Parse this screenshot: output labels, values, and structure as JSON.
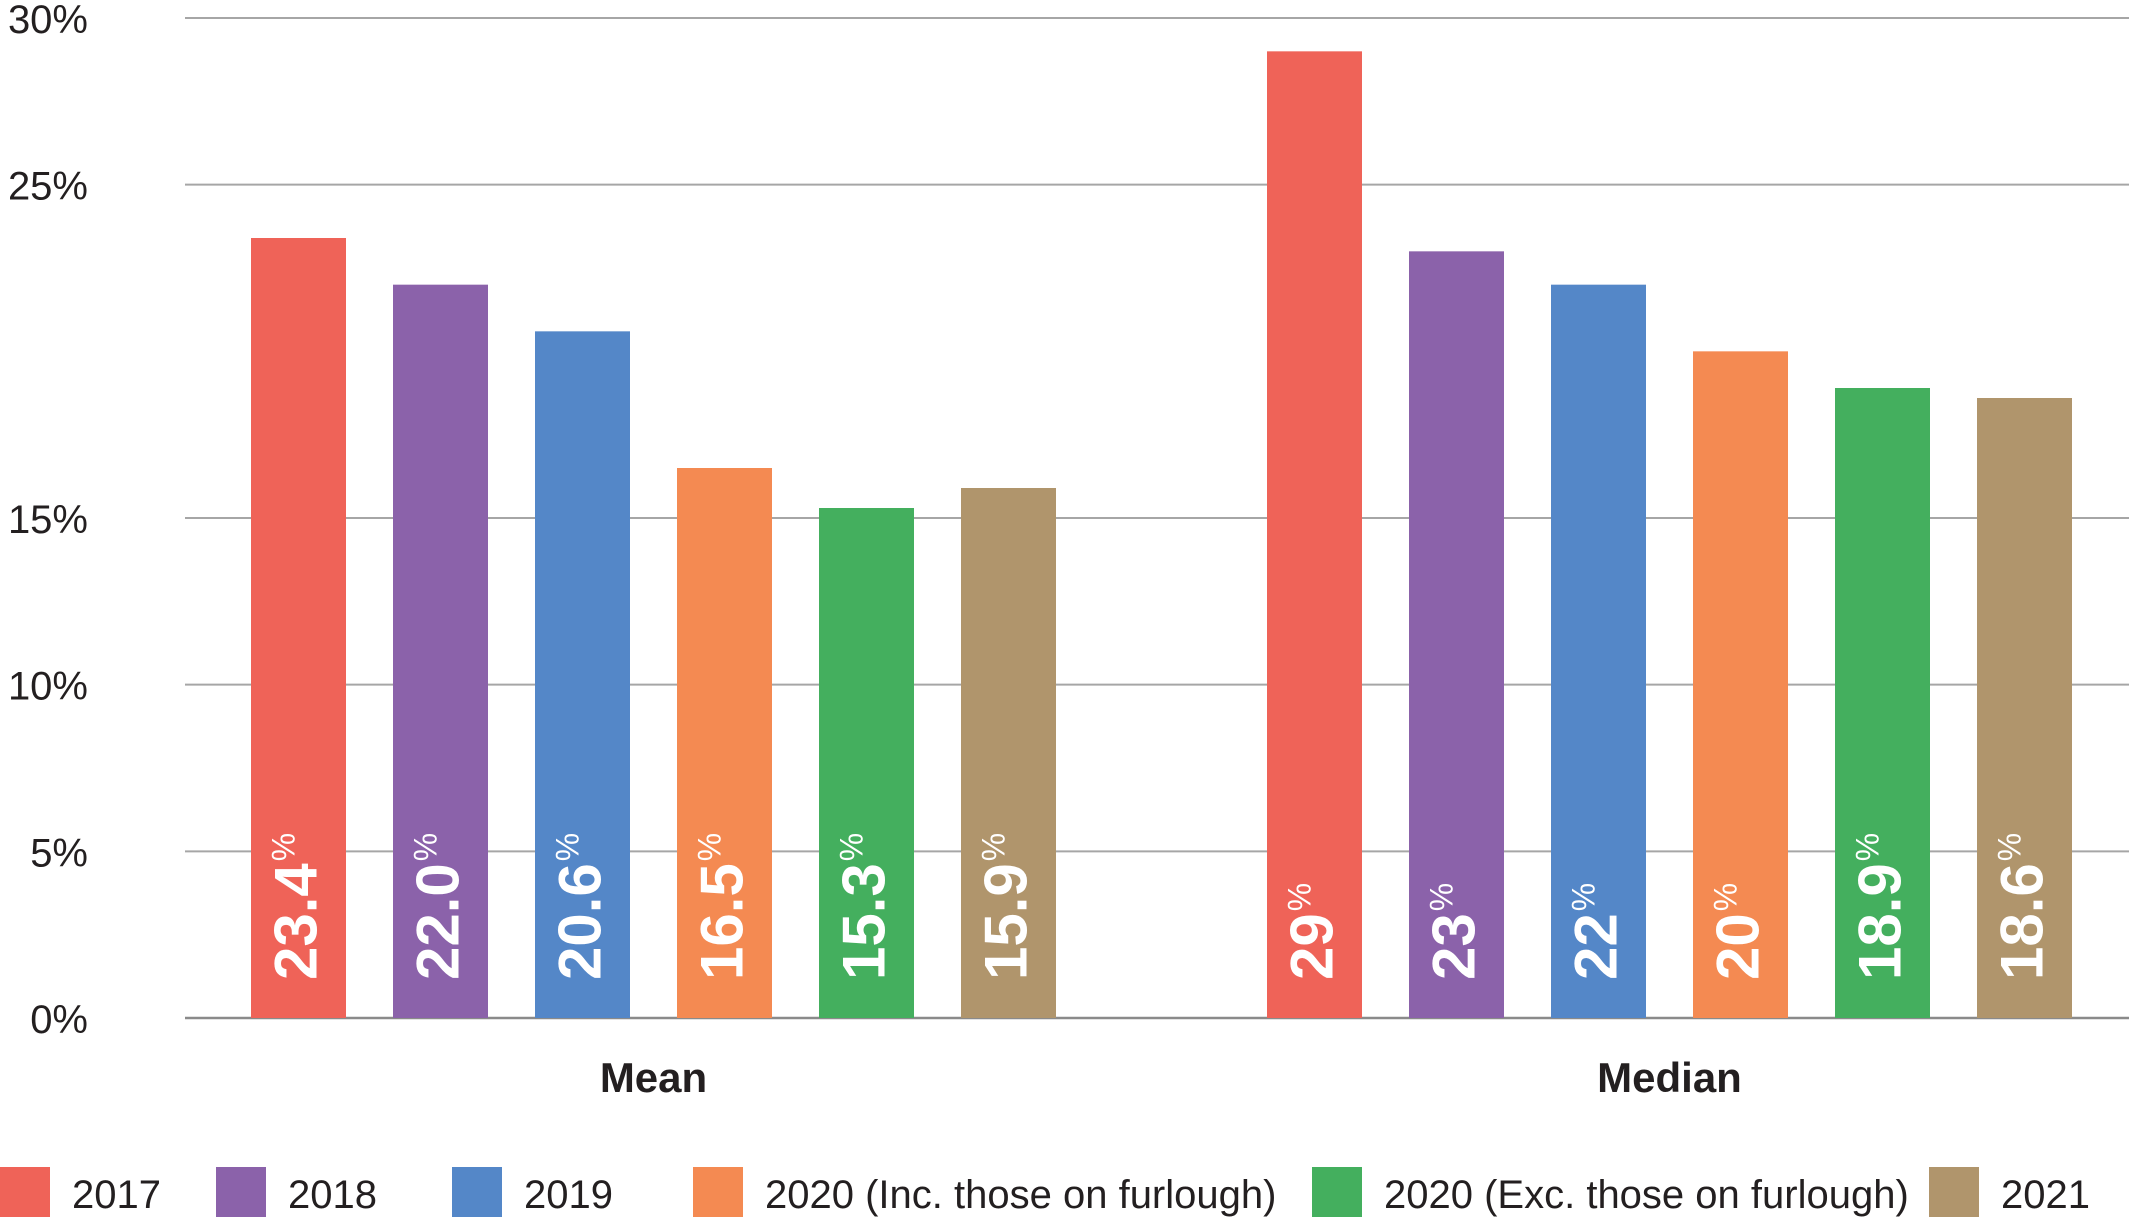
{
  "chart_data": {
    "type": "bar",
    "categories": [
      "Mean",
      "Median"
    ],
    "ylim": [
      0,
      30
    ],
    "y_ticks": [
      0,
      5,
      10,
      15,
      25,
      30
    ],
    "y_tick_labels": [
      "0%",
      "5%",
      "10%",
      "15%",
      "25%",
      "30%"
    ],
    "grid": true,
    "legend_position": "bottom",
    "series": [
      {
        "name": "2017",
        "color": "#EF6358",
        "values": [
          23.4,
          29
        ],
        "labels": [
          "23.4",
          "29"
        ]
      },
      {
        "name": "2018",
        "color": "#8B62AA",
        "values": [
          22.0,
          23
        ],
        "labels": [
          "22.0",
          "23"
        ]
      },
      {
        "name": "2019",
        "color": "#5487C8",
        "values": [
          20.6,
          22
        ],
        "labels": [
          "20.6",
          "22"
        ]
      },
      {
        "name": "2020 (Inc. those on furlough)",
        "color": "#F48A52",
        "values": [
          16.5,
          20
        ],
        "labels": [
          "16.5",
          "20"
        ]
      },
      {
        "name": "2020 (Exc. those on furlough)",
        "color": "#44AF5E",
        "values": [
          15.3,
          18.9
        ],
        "labels": [
          "15.3",
          "18.9"
        ]
      },
      {
        "name": "2021",
        "color": "#B0956C",
        "values": [
          15.9,
          18.6
        ],
        "labels": [
          "15.9",
          "18.6"
        ]
      }
    ],
    "value_suffix": "%"
  }
}
